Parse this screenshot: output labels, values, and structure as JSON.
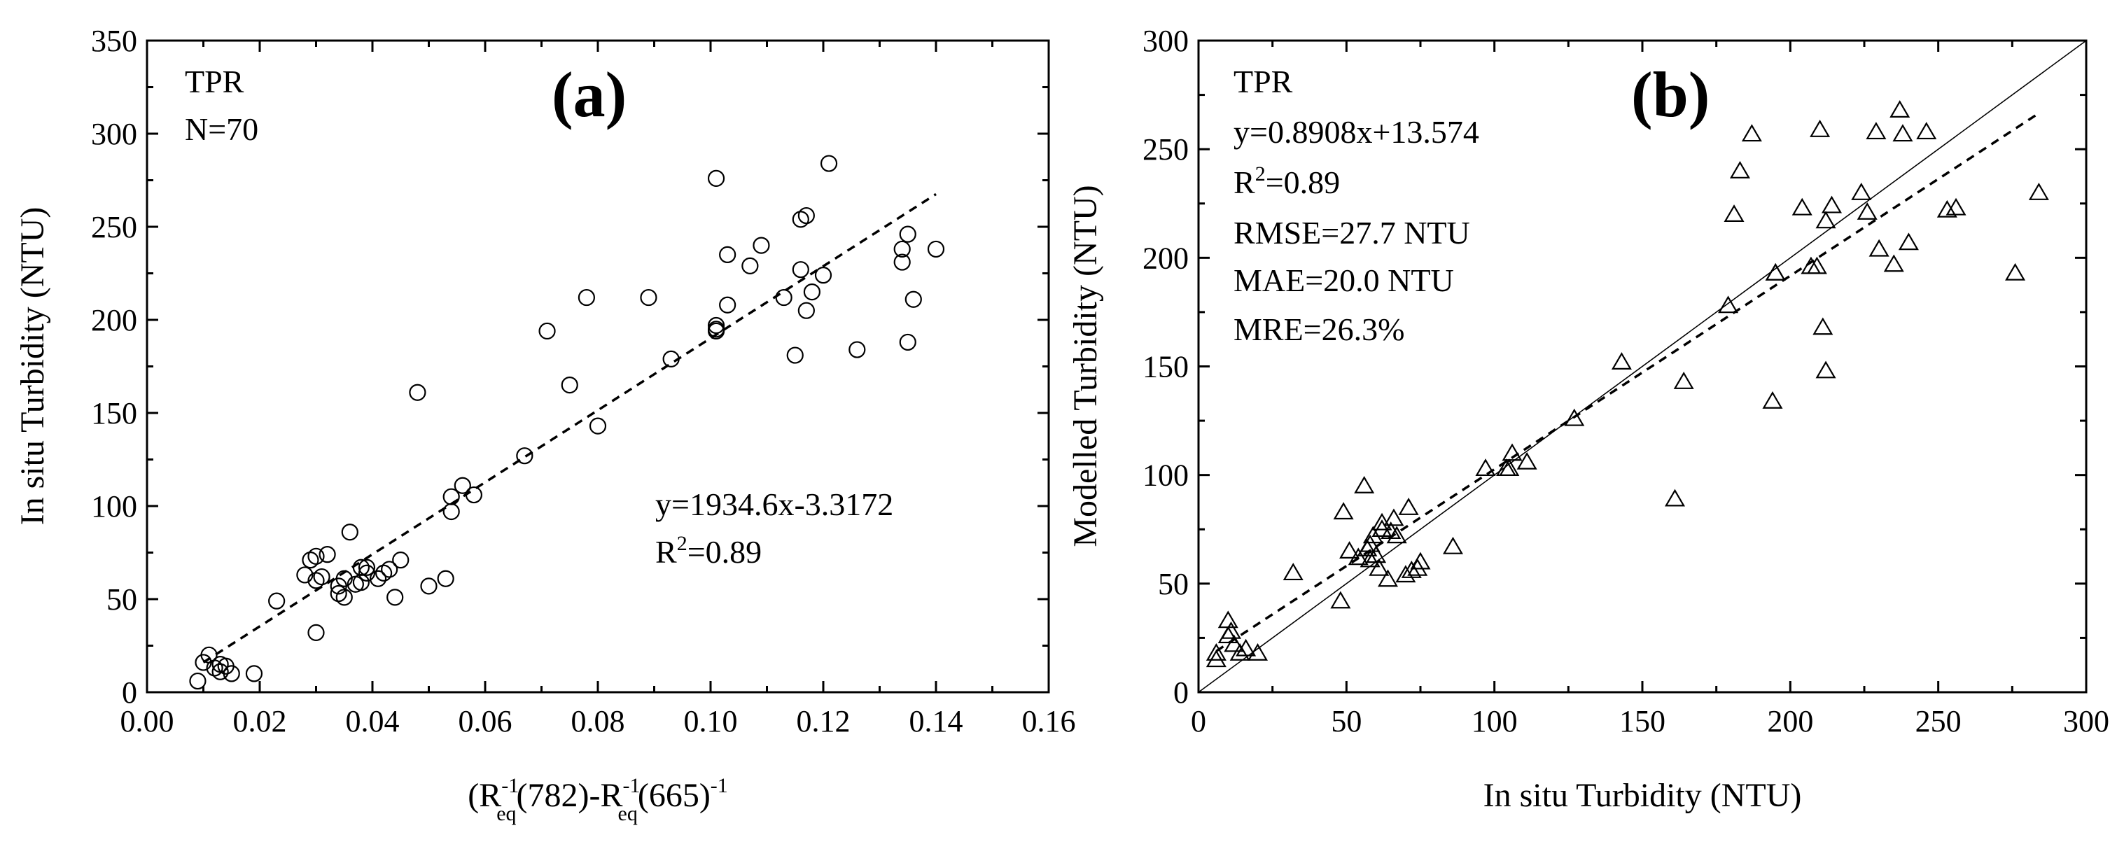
{
  "chart_data": [
    {
      "panel": "(a)",
      "type": "scatter",
      "marker": "circle",
      "corner_text": [
        "TPR",
        "N=70"
      ],
      "fit_equation": "y=1934.6x-3.3172",
      "r2_prefix": "R",
      "r2_suffix": "=0.89",
      "xlabel": {
        "open": "(R",
        "sub1": "eq",
        "sup1": "-1",
        "mid": "(782)-R",
        "sub2": "eq",
        "sup2": "-1",
        "tail": "(665)",
        "sup3": "-1"
      },
      "ylabel": "In situ Turbidity (NTU)",
      "xlim": [
        0,
        0.16
      ],
      "ylim": [
        0,
        350
      ],
      "xticks": [
        0.0,
        0.02,
        0.04,
        0.06,
        0.08,
        0.1,
        0.12,
        0.14,
        0.16
      ],
      "xtick_labels": [
        "0.00",
        "0.02",
        "0.04",
        "0.06",
        "0.08",
        "0.10",
        "0.12",
        "0.14",
        "0.16"
      ],
      "yticks": [
        0,
        50,
        100,
        150,
        200,
        250,
        300,
        350
      ],
      "ytick_labels": [
        "0",
        "50",
        "100",
        "150",
        "200",
        "250",
        "300",
        "350"
      ],
      "fit": {
        "slope": 1934.6,
        "intercept": -3.3172,
        "x_range": [
          0.01,
          0.14
        ],
        "style": "dashed"
      },
      "x": [
        0.009,
        0.01,
        0.011,
        0.012,
        0.013,
        0.014,
        0.015,
        0.019,
        0.023,
        0.028,
        0.029,
        0.03,
        0.03,
        0.03,
        0.032,
        0.034,
        0.034,
        0.035,
        0.035,
        0.036,
        0.037,
        0.038,
        0.038,
        0.039,
        0.039,
        0.041,
        0.042,
        0.043,
        0.044,
        0.045,
        0.048,
        0.05,
        0.053,
        0.054,
        0.054,
        0.056,
        0.058,
        0.067,
        0.071,
        0.075,
        0.078,
        0.08,
        0.089,
        0.093,
        0.101,
        0.101,
        0.101,
        0.103,
        0.103,
        0.107,
        0.109,
        0.113,
        0.115,
        0.116,
        0.116,
        0.117,
        0.117,
        0.118,
        0.12,
        0.121,
        0.126,
        0.134,
        0.134,
        0.135,
        0.135,
        0.136,
        0.14,
        0.101,
        0.013,
        0.031
      ],
      "y": [
        6,
        16,
        20,
        13,
        11,
        14,
        10,
        10,
        49,
        63,
        71,
        60,
        73,
        32,
        74,
        53,
        57,
        51,
        61,
        86,
        58,
        59,
        67,
        64,
        67,
        61,
        64,
        66,
        51,
        71,
        161,
        57,
        61,
        97,
        105,
        111,
        106,
        127,
        194,
        165,
        212,
        143,
        212,
        179,
        194,
        197,
        276,
        235,
        208,
        229,
        240,
        212,
        181,
        227,
        254,
        256,
        205,
        215,
        224,
        284,
        184,
        231,
        238,
        188,
        246,
        211,
        238,
        195,
        15,
        62
      ]
    },
    {
      "panel": "(b)",
      "type": "scatter",
      "marker": "triangle",
      "annotations": [
        "TPR",
        "y=0.8908x+13.574",
        "R²=0.89",
        "RMSE=27.7 NTU",
        "MAE=20.0 NTU",
        "MRE=26.3%"
      ],
      "xlabel": "In situ Turbidity (NTU)",
      "ylabel": "Modelled Turbidity (NTU)",
      "xlim": [
        0,
        300
      ],
      "ylim": [
        0,
        300
      ],
      "xticks": [
        0,
        50,
        100,
        150,
        200,
        250,
        300
      ],
      "xtick_labels": [
        "0",
        "50",
        "100",
        "150",
        "200",
        "250",
        "300"
      ],
      "yticks": [
        0,
        50,
        100,
        150,
        200,
        250,
        300
      ],
      "ytick_labels": [
        "0",
        "50",
        "100",
        "150",
        "200",
        "250",
        "300"
      ],
      "fit": {
        "slope": 0.8908,
        "intercept": 13.574,
        "x_range": [
          6,
          284
        ],
        "style": "dashed"
      },
      "one_to_one": {
        "x_range": [
          0,
          300
        ],
        "style": "solid-thin"
      },
      "x": [
        6,
        10,
        10,
        12,
        14,
        16,
        20,
        32,
        48,
        49,
        51,
        54,
        56,
        57,
        58,
        59,
        60,
        61,
        62,
        62,
        64,
        65,
        66,
        67,
        70,
        71,
        72,
        74,
        75,
        86,
        97,
        104,
        105,
        106,
        111,
        127,
        143,
        161,
        164,
        179,
        181,
        183,
        187,
        194,
        195,
        204,
        207,
        209,
        210,
        211,
        212,
        212,
        214,
        224,
        226,
        229,
        230,
        235,
        237,
        238,
        240,
        246,
        253,
        256,
        276,
        284,
        58,
        195,
        6,
        11
      ],
      "y": [
        15,
        26,
        33,
        22,
        18,
        20,
        18,
        55,
        42,
        83,
        65,
        62,
        95,
        66,
        68,
        72,
        63,
        57,
        75,
        78,
        52,
        74,
        80,
        72,
        54,
        85,
        56,
        57,
        60,
        67,
        103,
        103,
        103,
        110,
        106,
        126,
        152,
        89,
        143,
        178,
        220,
        240,
        257,
        134,
        193,
        223,
        196,
        196,
        259,
        168,
        148,
        217,
        224,
        230,
        221,
        258,
        204,
        197,
        268,
        257,
        207,
        258,
        222,
        223,
        193,
        230,
        61,
        193,
        18,
        28
      ]
    }
  ]
}
